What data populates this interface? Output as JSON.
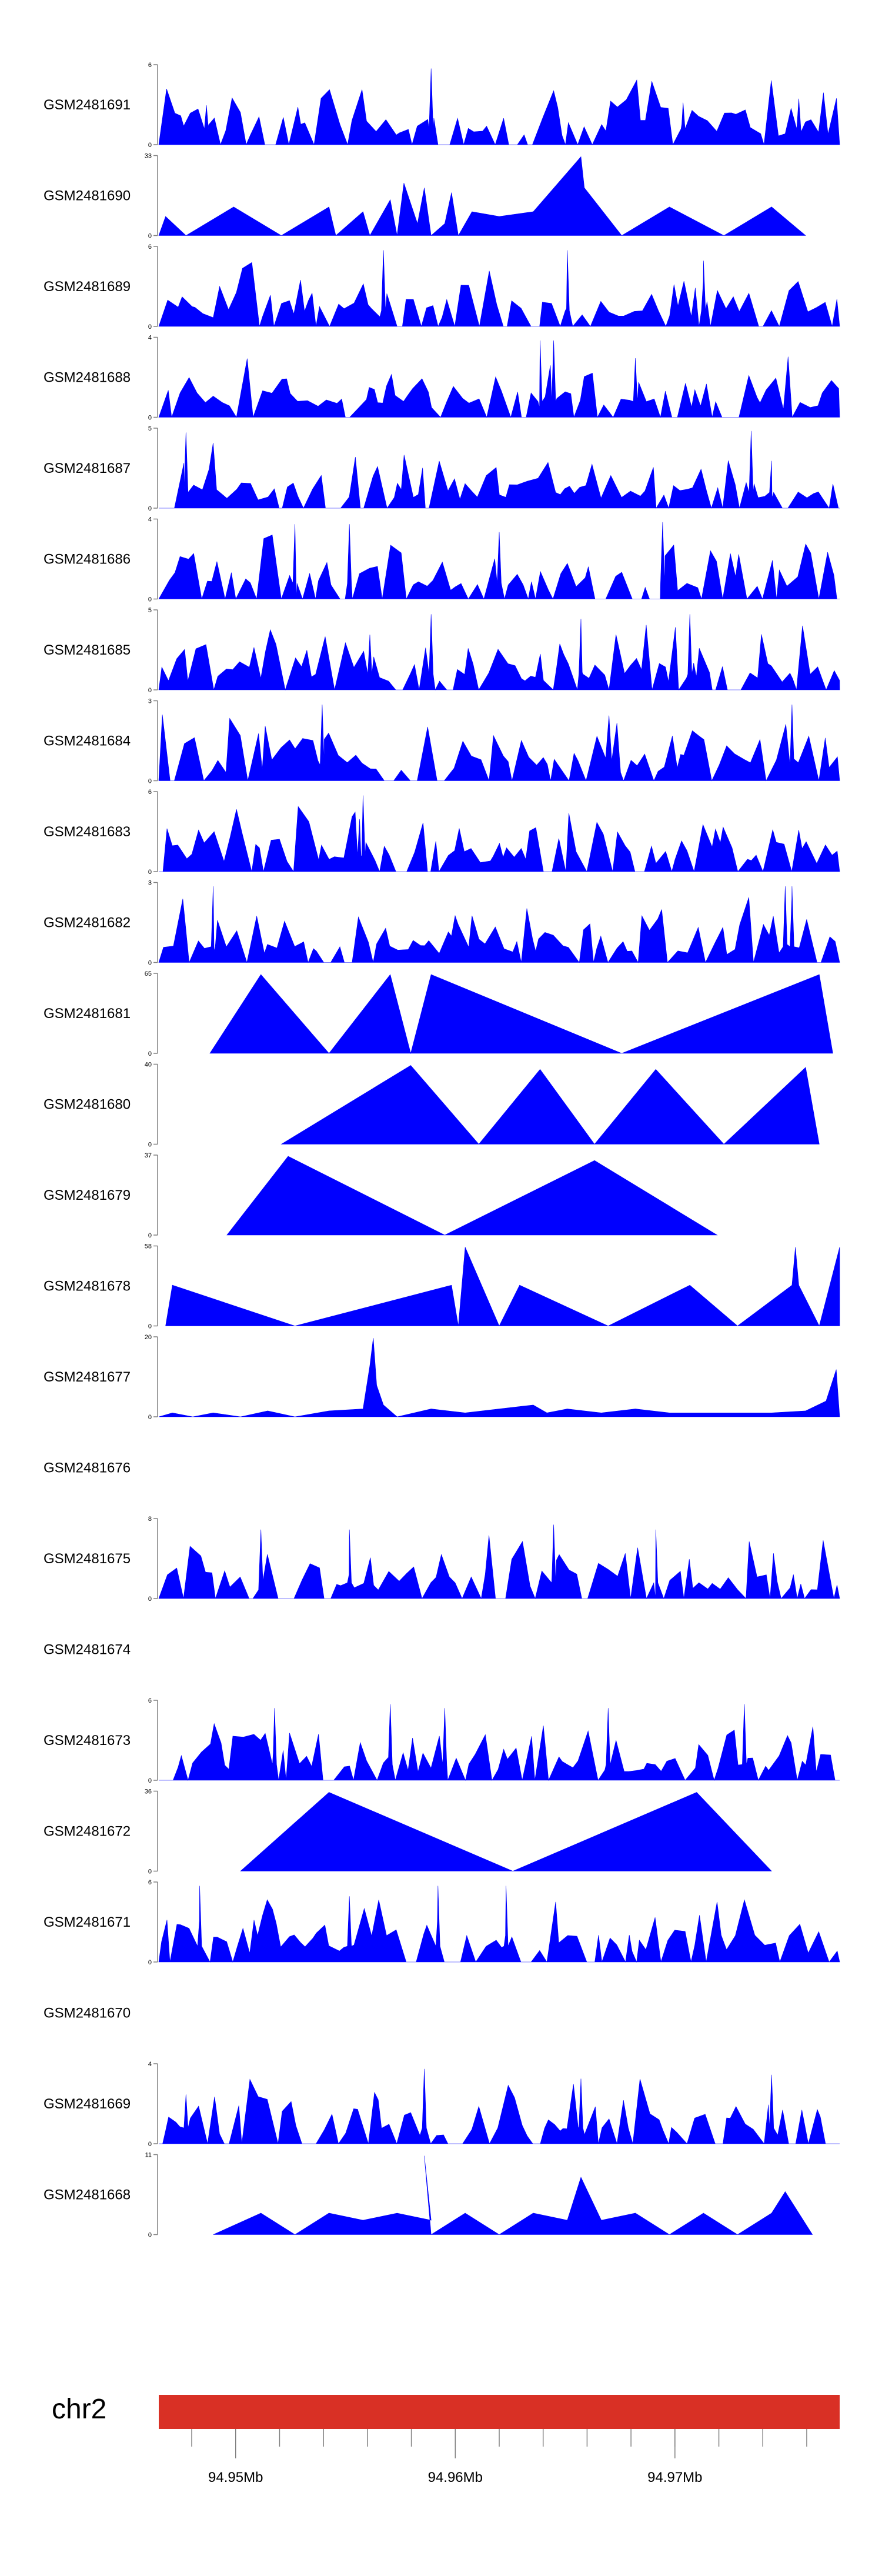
{
  "chart_data": {
    "type": "area",
    "title": "",
    "xlabel": "",
    "ylabel": "",
    "colors": {
      "coverage": "#0000FF",
      "ideogram": "#D93025",
      "axis": "#808080",
      "text": "#000000"
    },
    "tracks": [
      {
        "name": "GSM2481691",
        "ymax": 6,
        "profile": "dense",
        "peaks": [
          [
            0.07,
            3
          ],
          [
            0.4,
            5.8
          ],
          [
            0.77,
            3.2
          ],
          [
            0.94,
            3.5
          ]
        ]
      },
      {
        "name": "GSM2481690",
        "ymax": 33,
        "profile": "sparse",
        "points": [
          [
            0,
            0
          ],
          [
            0.01,
            8
          ],
          [
            0.04,
            0
          ],
          [
            0.11,
            12
          ],
          [
            0.18,
            0
          ],
          [
            0.25,
            12
          ],
          [
            0.26,
            0
          ],
          [
            0.3,
            10
          ],
          [
            0.31,
            0
          ],
          [
            0.34,
            15
          ],
          [
            0.35,
            0
          ],
          [
            0.36,
            22
          ],
          [
            0.38,
            5
          ],
          [
            0.39,
            20
          ],
          [
            0.4,
            0
          ],
          [
            0.42,
            5
          ],
          [
            0.43,
            18
          ],
          [
            0.44,
            0
          ],
          [
            0.46,
            10
          ],
          [
            0.5,
            8
          ],
          [
            0.55,
            10
          ],
          [
            0.62,
            33
          ],
          [
            0.625,
            20
          ],
          [
            0.68,
            0
          ],
          [
            0.75,
            12
          ],
          [
            0.83,
            0
          ],
          [
            0.9,
            12
          ],
          [
            0.95,
            0
          ]
        ]
      },
      {
        "name": "GSM2481689",
        "ymax": 6,
        "profile": "dense",
        "peaks": [
          [
            0.33,
            5.8
          ],
          [
            0.6,
            5.8
          ],
          [
            0.8,
            5
          ]
        ]
      },
      {
        "name": "GSM2481688",
        "ymax": 4,
        "profile": "dense",
        "peaks": [
          [
            0.56,
            3.9
          ],
          [
            0.58,
            3.9
          ],
          [
            0.7,
            3
          ]
        ]
      },
      {
        "name": "GSM2481687",
        "ymax": 5,
        "profile": "dense",
        "peaks": [
          [
            0.04,
            4.8
          ],
          [
            0.87,
            4.9
          ],
          [
            0.9,
            3
          ]
        ]
      },
      {
        "name": "GSM2481686",
        "ymax": 4,
        "profile": "dense",
        "peaks": [
          [
            0.2,
            3.8
          ],
          [
            0.28,
            3.8
          ],
          [
            0.5,
            3.4
          ],
          [
            0.74,
            3.9
          ]
        ]
      },
      {
        "name": "GSM2481685",
        "ymax": 5,
        "profile": "dense",
        "peaks": [
          [
            0.31,
            3.5
          ],
          [
            0.4,
            4.8
          ],
          [
            0.62,
            4.5
          ],
          [
            0.78,
            4.8
          ]
        ]
      },
      {
        "name": "GSM2481684",
        "ymax": 3,
        "profile": "dense",
        "peaks": [
          [
            0.24,
            2.9
          ],
          [
            0.93,
            2.9
          ]
        ]
      },
      {
        "name": "GSM2481683",
        "ymax": 6,
        "profile": "dense",
        "peaks": [
          [
            0.3,
            5.8
          ],
          [
            0.295,
            4
          ]
        ]
      },
      {
        "name": "GSM2481682",
        "ymax": 3,
        "profile": "dense",
        "peaks": [
          [
            0.08,
            2.9
          ],
          [
            0.92,
            2.9
          ],
          [
            0.93,
            2.9
          ]
        ]
      },
      {
        "name": "GSM2481681",
        "ymax": 65,
        "profile": "sparse",
        "points": [
          [
            0.075,
            0
          ],
          [
            0.15,
            65
          ],
          [
            0.25,
            0
          ],
          [
            0.34,
            65
          ],
          [
            0.37,
            0
          ],
          [
            0.4,
            65
          ],
          [
            0.68,
            0
          ],
          [
            0.97,
            65
          ],
          [
            0.99,
            0
          ]
        ]
      },
      {
        "name": "GSM2481680",
        "ymax": 40,
        "profile": "sparse",
        "points": [
          [
            0.18,
            0
          ],
          [
            0.37,
            40
          ],
          [
            0.47,
            0
          ],
          [
            0.56,
            38
          ],
          [
            0.64,
            0
          ],
          [
            0.73,
            38
          ],
          [
            0.83,
            0
          ],
          [
            0.95,
            39
          ],
          [
            0.97,
            0
          ]
        ]
      },
      {
        "name": "GSM2481679",
        "ymax": 37,
        "profile": "sparse",
        "points": [
          [
            0.1,
            0
          ],
          [
            0.19,
            37
          ],
          [
            0.42,
            0
          ],
          [
            0.64,
            35
          ],
          [
            0.82,
            0
          ]
        ]
      },
      {
        "name": "GSM2481678",
        "ymax": 58,
        "profile": "sparse",
        "points": [
          [
            0.01,
            0
          ],
          [
            0.02,
            30
          ],
          [
            0.2,
            0
          ],
          [
            0.43,
            30
          ],
          [
            0.44,
            0
          ],
          [
            0.45,
            58
          ],
          [
            0.5,
            0
          ],
          [
            0.53,
            30
          ],
          [
            0.66,
            0
          ],
          [
            0.78,
            30
          ],
          [
            0.85,
            0
          ],
          [
            0.93,
            30
          ],
          [
            0.935,
            58
          ],
          [
            0.94,
            30
          ],
          [
            0.97,
            0
          ],
          [
            1.0,
            58
          ],
          [
            1.0,
            0
          ]
        ]
      },
      {
        "name": "GSM2481677",
        "ymax": 20,
        "profile": "sparse",
        "points": [
          [
            0,
            0
          ],
          [
            0.02,
            1
          ],
          [
            0.05,
            0
          ],
          [
            0.08,
            1
          ],
          [
            0.12,
            0
          ],
          [
            0.16,
            1.5
          ],
          [
            0.2,
            0
          ],
          [
            0.25,
            1.5
          ],
          [
            0.3,
            2
          ],
          [
            0.31,
            13
          ],
          [
            0.315,
            20
          ],
          [
            0.32,
            8
          ],
          [
            0.33,
            3
          ],
          [
            0.35,
            0
          ],
          [
            0.4,
            2
          ],
          [
            0.45,
            1
          ],
          [
            0.5,
            2
          ],
          [
            0.55,
            3
          ],
          [
            0.57,
            1
          ],
          [
            0.6,
            2
          ],
          [
            0.65,
            1
          ],
          [
            0.7,
            2
          ],
          [
            0.75,
            1
          ],
          [
            0.8,
            1
          ],
          [
            0.85,
            1
          ],
          [
            0.9,
            1
          ],
          [
            0.95,
            1.5
          ],
          [
            0.98,
            4
          ],
          [
            0.995,
            12
          ],
          [
            1.0,
            0
          ]
        ]
      },
      {
        "name": "GSM2481676",
        "ymax": null,
        "profile": "empty"
      },
      {
        "name": "GSM2481675",
        "ymax": 8,
        "profile": "dense",
        "peaks": [
          [
            0.15,
            7
          ],
          [
            0.28,
            7
          ],
          [
            0.58,
            7.5
          ],
          [
            0.73,
            7
          ]
        ]
      },
      {
        "name": "GSM2481674",
        "ymax": null,
        "profile": "empty"
      },
      {
        "name": "GSM2481673",
        "ymax": 6,
        "profile": "dense",
        "peaks": [
          [
            0.17,
            5.5
          ],
          [
            0.34,
            5.8
          ],
          [
            0.42,
            5.5
          ],
          [
            0.66,
            5.5
          ],
          [
            0.86,
            5.8
          ]
        ]
      },
      {
        "name": "GSM2481672",
        "ymax": 36,
        "profile": "sparse",
        "points": [
          [
            0.12,
            0
          ],
          [
            0.25,
            36
          ],
          [
            0.52,
            0
          ],
          [
            0.79,
            36
          ],
          [
            0.9,
            0
          ]
        ]
      },
      {
        "name": "GSM2481671",
        "ymax": 6,
        "profile": "dense",
        "peaks": [
          [
            0.06,
            5.8
          ],
          [
            0.28,
            5
          ],
          [
            0.41,
            5.8
          ],
          [
            0.51,
            5.8
          ]
        ]
      },
      {
        "name": "GSM2481670",
        "ymax": null,
        "profile": "empty"
      },
      {
        "name": "GSM2481669",
        "ymax": 4,
        "profile": "dense",
        "peaks": [
          [
            0.04,
            2.5
          ],
          [
            0.39,
            3.8
          ],
          [
            0.62,
            3.3
          ],
          [
            0.9,
            3.5
          ]
        ]
      },
      {
        "name": "GSM2481668",
        "ymax": 11,
        "profile": "sparse",
        "points": [
          [
            0.08,
            0
          ],
          [
            0.15,
            3
          ],
          [
            0.2,
            0
          ],
          [
            0.25,
            3
          ],
          [
            0.3,
            2
          ],
          [
            0.35,
            3
          ],
          [
            0.4,
            2
          ],
          [
            0.39,
            11
          ],
          [
            0.4,
            0
          ],
          [
            0.45,
            3
          ],
          [
            0.5,
            0
          ],
          [
            0.55,
            3
          ],
          [
            0.6,
            2
          ],
          [
            0.62,
            8
          ],
          [
            0.65,
            2
          ],
          [
            0.7,
            3
          ],
          [
            0.75,
            0
          ],
          [
            0.8,
            3
          ],
          [
            0.85,
            0
          ],
          [
            0.9,
            3
          ],
          [
            0.92,
            6
          ],
          [
            0.96,
            0
          ]
        ]
      }
    ],
    "ytick_min_label": "0",
    "ideogram": {
      "chromosome": "chr2"
    },
    "x_axis": {
      "range_mb": [
        94.9465,
        94.9775
      ],
      "minor_tick_step_mb": 0.002,
      "ticks": [
        {
          "value": 94.95,
          "label": "94.95Mb"
        },
        {
          "value": 94.96,
          "label": "94.96Mb"
        },
        {
          "value": 94.97,
          "label": "94.97Mb"
        }
      ]
    }
  }
}
